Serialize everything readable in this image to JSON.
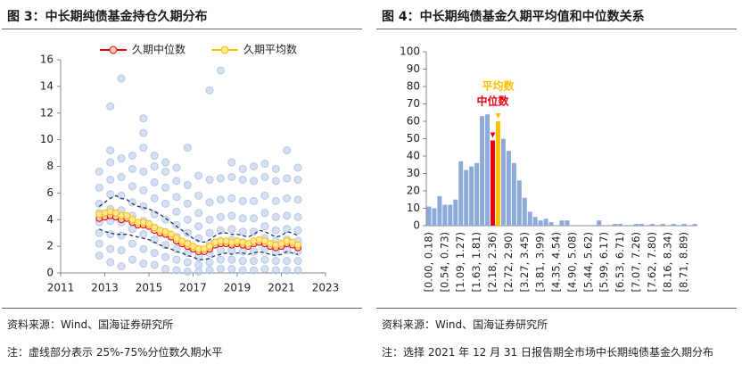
{
  "chart_data": [
    {
      "type": "scatter",
      "title": "图 3：中长期纯债基金持仓久期分布",
      "source": "资料来源：Wind、国海证券研究所",
      "note": "注：虚线部分表示 25%-75%分位数久期水平",
      "xlim": [
        2011,
        2023
      ],
      "xticks": [
        2011,
        2013,
        2015,
        2017,
        2019,
        2021,
        2023
      ],
      "ylim": [
        0,
        16
      ],
      "yticks": [
        0,
        2,
        4,
        6,
        8,
        10,
        12,
        14,
        16
      ],
      "legend": "top",
      "scatter_color": "#b4c7e7",
      "scatter": [
        {
          "x": 2012.75,
          "y": [
            1.3,
            2.2,
            3.0,
            3.8,
            4.5,
            5.2,
            6.4,
            7.6
          ]
        },
        {
          "x": 2013.25,
          "y": [
            0.8,
            1.8,
            2.9,
            3.9,
            4.8,
            5.9,
            7.0,
            8.3,
            9.2,
            12.5
          ]
        },
        {
          "x": 2013.75,
          "y": [
            0.5,
            1.7,
            2.8,
            3.8,
            4.7,
            5.8,
            7.2,
            8.6,
            14.6
          ]
        },
        {
          "x": 2014.25,
          "y": [
            1.0,
            2.2,
            3.3,
            4.3,
            5.3,
            6.5,
            7.8,
            8.8
          ]
        },
        {
          "x": 2014.75,
          "y": [
            0.7,
            1.8,
            2.9,
            3.9,
            5.0,
            6.2,
            7.6,
            9.4,
            10.5,
            11.6
          ]
        },
        {
          "x": 2015.25,
          "y": [
            0.6,
            1.5,
            2.5,
            3.4,
            4.4,
            5.6,
            6.8,
            8.0,
            8.8
          ]
        },
        {
          "x": 2015.75,
          "y": [
            0.3,
            1.2,
            2.1,
            3.0,
            4.0,
            5.2,
            6.4,
            7.6,
            8.3
          ]
        },
        {
          "x": 2016.25,
          "y": [
            0.2,
            1.0,
            1.8,
            2.7,
            3.6,
            4.6,
            5.7,
            6.9,
            7.9
          ]
        },
        {
          "x": 2016.75,
          "y": [
            0.1,
            0.8,
            1.5,
            2.2,
            3.0,
            4.0,
            5.2,
            6.6,
            9.4
          ]
        },
        {
          "x": 2017.25,
          "y": [
            0.1,
            0.6,
            1.2,
            1.8,
            2.6,
            3.5,
            4.5,
            5.8,
            7.3
          ]
        },
        {
          "x": 2017.75,
          "y": [
            0.2,
            0.8,
            1.5,
            2.2,
            3.0,
            4.0,
            5.3,
            7.0,
            13.7
          ]
        },
        {
          "x": 2018.25,
          "y": [
            0.3,
            1.0,
            1.7,
            2.4,
            3.2,
            4.2,
            5.5,
            7.1,
            15.2
          ]
        },
        {
          "x": 2018.75,
          "y": [
            0.3,
            1.0,
            1.7,
            2.5,
            3.3,
            4.3,
            5.6,
            7.2,
            8.3
          ]
        },
        {
          "x": 2019.25,
          "y": [
            0.2,
            0.9,
            1.6,
            2.3,
            3.1,
            4.1,
            5.4,
            7.0,
            7.8
          ]
        },
        {
          "x": 2019.75,
          "y": [
            0.2,
            0.9,
            1.6,
            2.3,
            3.1,
            4.1,
            5.4,
            6.9,
            8.0
          ]
        },
        {
          "x": 2020.25,
          "y": [
            0.3,
            1.0,
            1.8,
            2.6,
            3.5,
            4.5,
            5.8,
            7.2,
            8.2
          ]
        },
        {
          "x": 2020.75,
          "y": [
            0.2,
            0.9,
            1.6,
            2.4,
            3.2,
            4.2,
            5.4,
            6.9,
            7.8
          ]
        },
        {
          "x": 2021.25,
          "y": [
            0.2,
            0.9,
            1.7,
            2.5,
            3.3,
            4.3,
            5.6,
            7.1,
            9.2
          ]
        },
        {
          "x": 2021.75,
          "y": [
            0.2,
            0.9,
            1.6,
            2.4,
            3.2,
            4.2,
            5.5,
            7.0,
            7.9
          ]
        }
      ],
      "x": [
        2012.75,
        2013,
        2013.25,
        2013.5,
        2013.75,
        2014,
        2014.25,
        2014.5,
        2014.75,
        2015,
        2015.25,
        2015.5,
        2015.75,
        2016,
        2016.25,
        2016.5,
        2016.75,
        2017,
        2017.25,
        2017.5,
        2017.75,
        2018,
        2018.25,
        2018.5,
        2018.75,
        2019,
        2019.25,
        2019.5,
        2019.75,
        2020,
        2020.25,
        2020.5,
        2020.75,
        2021,
        2021.25,
        2021.5,
        2021.75
      ],
      "series": [
        {
          "name": "久期中位数",
          "color": "#e60012",
          "marker_color": "#f8cbad",
          "values": [
            4.1,
            4.2,
            4.3,
            4.2,
            4.0,
            4.1,
            3.8,
            3.6,
            3.6,
            3.5,
            3.2,
            3.0,
            2.9,
            2.7,
            2.4,
            2.2,
            2.0,
            1.8,
            1.6,
            1.6,
            1.8,
            2.1,
            2.2,
            2.2,
            2.1,
            2.2,
            2.1,
            2.0,
            2.2,
            2.3,
            2.2,
            2.0,
            1.9,
            2.0,
            2.2,
            2.1,
            1.9
          ]
        },
        {
          "name": "久期平均数",
          "color": "#ffc000",
          "marker_color": "#ffe699",
          "values": [
            4.4,
            4.5,
            4.6,
            4.5,
            4.3,
            4.3,
            4.0,
            3.8,
            3.8,
            3.7,
            3.4,
            3.2,
            3.1,
            2.9,
            2.6,
            2.4,
            2.2,
            2.0,
            1.8,
            1.8,
            2.0,
            2.3,
            2.4,
            2.4,
            2.3,
            2.4,
            2.3,
            2.2,
            2.4,
            2.5,
            2.4,
            2.2,
            2.1,
            2.2,
            2.4,
            2.3,
            2.1
          ]
        },
        {
          "color": "#1f3864",
          "dashed": true,
          "values": [
            5.0,
            5.3,
            5.6,
            5.8,
            5.6,
            5.5,
            5.2,
            5.0,
            4.9,
            4.8,
            4.6,
            4.4,
            4.1,
            3.8,
            3.5,
            3.2,
            2.9,
            2.6,
            2.4,
            2.3,
            2.5,
            2.8,
            3.0,
            3.0,
            2.9,
            2.9,
            2.8,
            2.7,
            2.9,
            3.2,
            3.1,
            2.9,
            2.7,
            2.8,
            3.1,
            3.0,
            2.8
          ]
        },
        {
          "color": "#1f3864",
          "dashed": true,
          "values": [
            3.3,
            3.1,
            3.0,
            2.9,
            2.9,
            2.9,
            2.8,
            2.7,
            2.6,
            2.5,
            2.3,
            2.1,
            1.9,
            1.8,
            1.6,
            1.5,
            1.3,
            1.2,
            1.0,
            1.0,
            1.1,
            1.3,
            1.4,
            1.5,
            1.4,
            1.5,
            1.5,
            1.4,
            1.5,
            1.6,
            1.5,
            1.4,
            1.3,
            1.4,
            1.6,
            1.5,
            1.4
          ]
        }
      ]
    },
    {
      "type": "bar",
      "title": "图 4：中长期纯债基金久期平均值和中位数关系",
      "source": "资料来源：Wind、国海证券研究所",
      "note": "注：选择 2021 年 12 月 31 日报告期全市场中长期纯债基金久期分布",
      "ylim": [
        0,
        100
      ],
      "yticks": [
        0,
        10,
        20,
        30,
        40,
        50,
        60,
        70,
        80,
        90,
        100
      ],
      "categories": [
        "[0.00, 0.18)",
        null,
        null,
        "[0.54, 0.73)",
        null,
        null,
        "[1.09, 1.27)",
        null,
        null,
        "[1.63, 1.81)",
        null,
        null,
        "[2.18, 2.36)",
        null,
        null,
        "[2.72, 2.90)",
        null,
        null,
        "[3.27, 3.45)",
        null,
        null,
        "[3.81, 3.99)",
        null,
        null,
        "[4.35, 4.54)",
        null,
        null,
        "[4.90, 5.08)",
        null,
        null,
        "[5.44, 5.62)",
        null,
        null,
        "[5.99, 6.17)",
        null,
        null,
        "[6.53, 6.71)",
        null,
        null,
        "[7.07, 7.26)",
        null,
        null,
        "[7.62, 7.80)",
        null,
        null,
        "[8.16, 8.34)",
        null,
        null,
        "[8.71, 8.89)",
        null,
        null
      ],
      "values": [
        11,
        10,
        17,
        12,
        12,
        15,
        37,
        32,
        34,
        36,
        63,
        64,
        49,
        60,
        50,
        43,
        36,
        26,
        16,
        8,
        5,
        3,
        4,
        2,
        0,
        3,
        3,
        0,
        0,
        0,
        0,
        0,
        3,
        0,
        0,
        1,
        1,
        0,
        0,
        1,
        1,
        0,
        1,
        0,
        1,
        0,
        1,
        0,
        1,
        0,
        1
      ],
      "colors": [
        "#8eaadb",
        "#8eaadb",
        "#8eaadb",
        "#8eaadb",
        "#8eaadb",
        "#8eaadb",
        "#8eaadb",
        "#8eaadb",
        "#8eaadb",
        "#8eaadb",
        "#8eaadb",
        "#8eaadb",
        "#e60012",
        "#ffc000",
        "#8eaadb",
        "#8eaadb",
        "#8eaadb",
        "#8eaadb",
        "#8eaadb",
        "#8eaadb",
        "#8eaadb",
        "#8eaadb",
        "#8eaadb",
        "#8eaadb",
        "#8eaadb",
        "#8eaadb",
        "#8eaadb",
        "#8eaadb",
        "#8eaadb",
        "#8eaadb",
        "#8eaadb",
        "#8eaadb",
        "#8eaadb",
        "#8eaadb",
        "#8eaadb",
        "#8eaadb",
        "#8eaadb",
        "#8eaadb",
        "#8eaadb",
        "#8eaadb",
        "#8eaadb",
        "#8eaadb",
        "#8eaadb",
        "#8eaadb",
        "#8eaadb",
        "#8eaadb",
        "#8eaadb",
        "#8eaadb",
        "#8eaadb",
        "#8eaadb",
        "#8eaadb"
      ],
      "annotations": [
        {
          "text": "平均数",
          "color": "#ffc000"
        },
        {
          "text": "中位数",
          "color": "#e60012"
        }
      ]
    }
  ]
}
